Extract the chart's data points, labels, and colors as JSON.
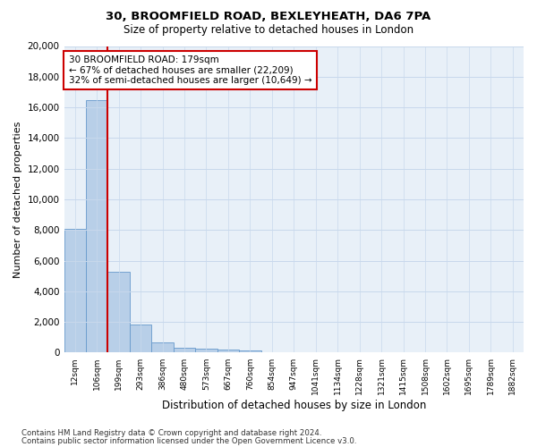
{
  "title1": "30, BROOMFIELD ROAD, BEXLEYHEATH, DA6 7PA",
  "title2": "Size of property relative to detached houses in London",
  "xlabel": "Distribution of detached houses by size in London",
  "ylabel": "Number of detached properties",
  "categories": [
    "12sqm",
    "106sqm",
    "199sqm",
    "293sqm",
    "386sqm",
    "480sqm",
    "573sqm",
    "667sqm",
    "760sqm",
    "854sqm",
    "947sqm",
    "1041sqm",
    "1134sqm",
    "1228sqm",
    "1321sqm",
    "1415sqm",
    "1508sqm",
    "1602sqm",
    "1695sqm",
    "1789sqm",
    "1882sqm"
  ],
  "values": [
    8100,
    16500,
    5300,
    1850,
    680,
    340,
    270,
    200,
    150,
    0,
    0,
    0,
    0,
    0,
    0,
    0,
    0,
    0,
    0,
    0,
    0
  ],
  "bar_color": "#b8cfe8",
  "bar_edgecolor": "#6699cc",
  "red_line_x": 1.5,
  "annotation_text": "30 BROOMFIELD ROAD: 179sqm\n← 67% of detached houses are smaller (22,209)\n32% of semi-detached houses are larger (10,649) →",
  "annotation_box_color": "#ffffff",
  "annotation_box_edgecolor": "#cc0000",
  "red_line_color": "#cc0000",
  "ylim": [
    0,
    20000
  ],
  "yticks": [
    0,
    2000,
    4000,
    6000,
    8000,
    10000,
    12000,
    14000,
    16000,
    18000,
    20000
  ],
  "grid_color": "#c8d8ec",
  "bg_color": "#e8f0f8",
  "footer1": "Contains HM Land Registry data © Crown copyright and database right 2024.",
  "footer2": "Contains public sector information licensed under the Open Government Licence v3.0."
}
